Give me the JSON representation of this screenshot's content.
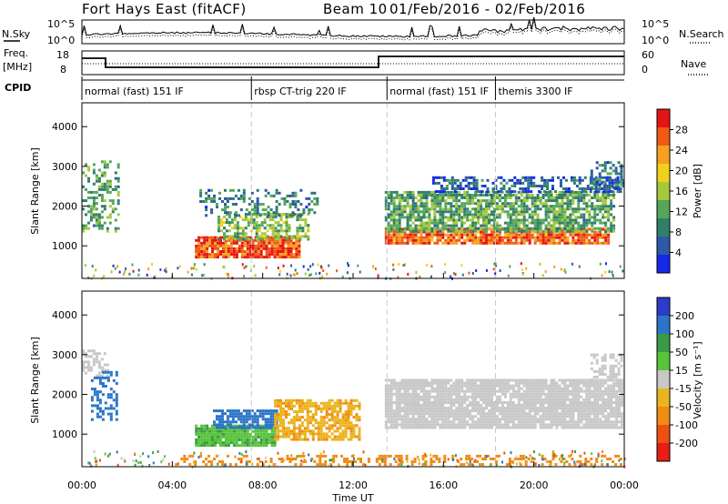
{
  "header": {
    "title": "Fort Hays East (fitACF)",
    "beam": "Beam 10",
    "date_range": "01/Feb/2016 - 02/Feb/2016"
  },
  "noise_panel": {
    "left_label": "N.Sky",
    "right_label": "N.Search",
    "left_ticks": [
      "10^5",
      "10^0"
    ],
    "right_ticks": [
      "10^5",
      "10^0"
    ]
  },
  "freq_panel": {
    "left_label_1": "Freq.",
    "left_label_2": "[MHz]",
    "right_label": "Nave",
    "left_ticks": [
      "18",
      "8"
    ],
    "right_ticks": [
      "60",
      "0"
    ]
  },
  "cpid_panel": {
    "label": "CPID",
    "modes": [
      {
        "start": 0,
        "label": "normal (fast) 151 IF"
      },
      {
        "start": 7.5,
        "label": "rbsp CT-trig 220 IF"
      },
      {
        "start": 13.5,
        "label": "normal (fast) 151 IF"
      },
      {
        "start": 18.3,
        "label": "themis 3300 IF"
      }
    ]
  },
  "x_axis": {
    "label": "Time UT",
    "ticks": [
      "00:00",
      "04:00",
      "08:00",
      "12:00",
      "16:00",
      "20:00",
      "00:00"
    ]
  },
  "power_colorbar": {
    "label": "Power [dB]",
    "ticks": [
      "4",
      "8",
      "12",
      "16",
      "20",
      "24",
      "28"
    ]
  },
  "velocity_colorbar": {
    "label": "Velocity [m s⁻¹]",
    "ticks": [
      "200",
      "100",
      "50",
      "15",
      "-15",
      "-50",
      "-100",
      "-200"
    ]
  },
  "colors": {
    "power_scale": [
      "#1428e6",
      "#2d5aa6",
      "#2f7f6b",
      "#55a65a",
      "#a6c83c",
      "#f0d21e",
      "#f5a01e",
      "#f05a14",
      "#e61414"
    ],
    "velocity_scale": [
      "#2a3cc8",
      "#2c74c8",
      "#3c9a46",
      "#58c43c",
      "#c8c8c8",
      "#ebb41e",
      "#f08c14",
      "#ee5014",
      "#e61e14"
    ],
    "mode_divider": "#c8c8c8"
  },
  "chart_data": [
    {
      "type": "heatmap",
      "name": "power_panel",
      "ylabel": "Slant Range [km]",
      "xlabel": "",
      "xlim": [
        0,
        24
      ],
      "ylim": [
        180,
        4600
      ],
      "yticks": [
        1000,
        2000,
        3000,
        4000
      ],
      "colorbar": "Power [dB]",
      "clim": [
        0,
        32
      ],
      "features": [
        {
          "t0": 0.0,
          "t1": 1.6,
          "r0": 1400,
          "r1": 3200,
          "value": 12,
          "density": 0.4
        },
        {
          "t0": 5.0,
          "t1": 9.6,
          "r0": 750,
          "r1": 1300,
          "value": 28,
          "density": 0.9
        },
        {
          "t0": 6.0,
          "t1": 10.0,
          "r0": 1200,
          "r1": 1900,
          "value": 14,
          "density": 0.6
        },
        {
          "t0": 5.2,
          "t1": 10.4,
          "r0": 1800,
          "r1": 2500,
          "value": 8,
          "density": 0.35
        },
        {
          "t0": 13.4,
          "t1": 23.3,
          "r0": 1100,
          "r1": 1500,
          "value": 26,
          "density": 0.9
        },
        {
          "t0": 13.4,
          "t1": 23.6,
          "r0": 1400,
          "r1": 2400,
          "value": 12,
          "density": 0.75
        },
        {
          "t0": 15.5,
          "t1": 24.0,
          "r0": 2400,
          "r1": 2800,
          "value": 6,
          "density": 0.5
        },
        {
          "t0": 22.5,
          "t1": 24.0,
          "r0": 2500,
          "r1": 3200,
          "value": 8,
          "density": 0.5
        }
      ]
    },
    {
      "type": "heatmap",
      "name": "velocity_panel",
      "ylabel": "Slant Range [km]",
      "xlabel": "Time UT",
      "xlim": [
        0,
        24
      ],
      "ylim": [
        180,
        4600
      ],
      "yticks": [
        1000,
        2000,
        3000,
        4000
      ],
      "colorbar": "Velocity [m s⁻¹]",
      "clim": [
        -250,
        250
      ],
      "features": [
        {
          "t0": 0.0,
          "t1": 1.2,
          "r0": 2500,
          "r1": 3200,
          "value": 0,
          "density": 0.5
        },
        {
          "t0": 0.4,
          "t1": 1.6,
          "r0": 1400,
          "r1": 2600,
          "value": 180,
          "density": 0.45
        },
        {
          "t0": 5.0,
          "t1": 8.5,
          "r0": 750,
          "r1": 1300,
          "value": 45,
          "density": 0.95
        },
        {
          "t0": 5.8,
          "t1": 8.6,
          "r0": 1200,
          "r1": 1650,
          "value": 150,
          "density": 0.8
        },
        {
          "t0": 8.5,
          "t1": 12.3,
          "r0": 900,
          "r1": 1900,
          "value": -45,
          "density": 0.7
        },
        {
          "t0": 13.4,
          "t1": 24.0,
          "r0": 1200,
          "r1": 2400,
          "value": 0,
          "density": 0.9
        },
        {
          "t0": 22.5,
          "t1": 24.0,
          "r0": 2400,
          "r1": 3100,
          "value": 0,
          "density": 0.5
        },
        {
          "t0": 4.0,
          "t1": 24.0,
          "r0": 200,
          "r1": 500,
          "value": -60,
          "density": 0.35
        }
      ]
    }
  ]
}
